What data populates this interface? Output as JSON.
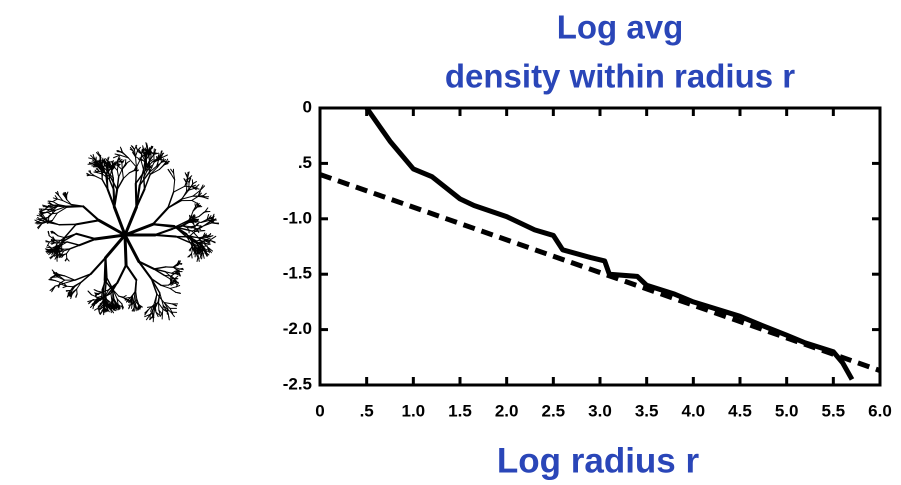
{
  "chart_data": {
    "type": "line",
    "title": [
      "Log avg",
      "density within radius r"
    ],
    "x_label": "Log radius r",
    "label_color": "#2a46b8",
    "xlim": [
      0,
      6
    ],
    "ylim": [
      -2.5,
      0
    ],
    "xticks": [
      0,
      {
        "value": 0.5,
        "label": ".5"
      },
      {
        "value": 1,
        "label": "1.0"
      },
      1.5,
      {
        "value": 2,
        "label": "2.0"
      },
      2.5,
      {
        "value": 3,
        "label": "3.0"
      },
      3.5,
      {
        "value": 4,
        "label": "4.0"
      },
      4.5,
      {
        "value": 5,
        "label": "5.0"
      },
      5.5,
      {
        "value": 6,
        "label": "6.0"
      }
    ],
    "yticks": [
      0,
      {
        "value": -0.5,
        "label": ".5"
      },
      {
        "value": -1,
        "label": "-1.0"
      },
      -1.5,
      {
        "value": -2,
        "label": "-2.0"
      },
      -2.5
    ],
    "series": [
      {
        "color": "#000000",
        "line_style": "solid",
        "x": [
          0.5,
          0.75,
          1.0,
          1.2,
          1.5,
          1.65,
          2.0,
          2.3,
          2.5,
          2.6,
          2.9,
          3.05,
          3.1,
          3.4,
          3.5,
          3.8,
          4.0,
          4.5,
          4.7,
          5.0,
          5.2,
          5.5,
          5.6,
          5.7
        ],
        "values": [
          0,
          -0.3,
          -0.55,
          -0.62,
          -0.82,
          -0.88,
          -0.98,
          -1.1,
          -1.15,
          -1.28,
          -1.35,
          -1.38,
          -1.5,
          -1.52,
          -1.6,
          -1.68,
          -1.75,
          -1.88,
          -1.95,
          -2.05,
          -2.12,
          -2.2,
          -2.3,
          -2.45
        ]
      },
      {
        "color": "#000000",
        "line_style": "dashed",
        "x": [
          0,
          6
        ],
        "values": [
          -0.6,
          -2.37
        ]
      }
    ]
  }
}
